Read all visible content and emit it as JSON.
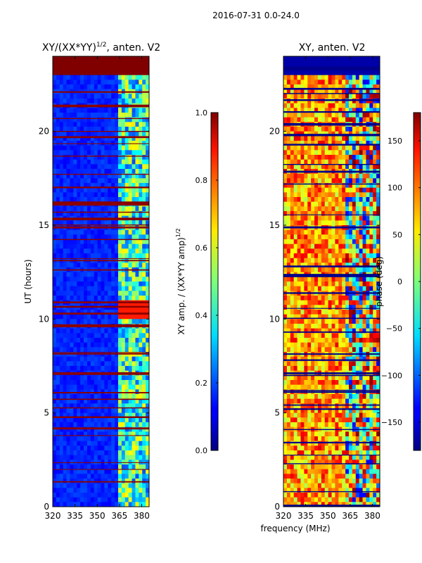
{
  "suptitle": "2016-07-31 0.0-24.0",
  "shared_xlabel": "frequency (MHz)",
  "colors": {
    "low": "#000080",
    "mid_low": "#0040ff",
    "cyan": "#30e0ff",
    "mid": "#7dff7a",
    "yellow": "#ffea00",
    "high": "#ff3000",
    "top": "#800000"
  },
  "chart_data": [
    {
      "type": "heatmap",
      "title_main": "XY/(XX*YY)",
      "title_sup": "1/2",
      "title_rest": ", anten. V2",
      "ylabel": "UT (hours)",
      "xlabel": "",
      "xlim": [
        320,
        385
      ],
      "ylim": [
        0,
        24
      ],
      "xticks": [
        "320",
        "335",
        "350",
        "365",
        "380"
      ],
      "xtick_values": [
        320,
        335,
        350,
        365,
        380
      ],
      "yticks": [
        "0",
        "5",
        "10",
        "15",
        "20"
      ],
      "ytick_values": [
        0,
        5,
        10,
        15,
        20
      ],
      "colorbar": {
        "label_main": "XY amp. / (XX*YY amp)",
        "label_sup": "1/2",
        "range": [
          0.0,
          1.0
        ],
        "ticks": [
          "0.0",
          "0.2",
          "0.4",
          "0.6",
          "0.8",
          "1.0"
        ],
        "tick_values": [
          0.0,
          0.2,
          0.4,
          0.6,
          0.8,
          1.0
        ]
      }
    },
    {
      "type": "heatmap",
      "title_main": "XY, anten. V2",
      "title_sup": "",
      "title_rest": "",
      "ylabel": "",
      "xlabel": "frequency (MHz)",
      "xlim": [
        320,
        385
      ],
      "ylim": [
        0,
        24
      ],
      "xticks": [
        "320",
        "335",
        "350",
        "365",
        "380"
      ],
      "xtick_values": [
        320,
        335,
        350,
        365,
        380
      ],
      "yticks": [
        "0",
        "5",
        "10",
        "15",
        "20"
      ],
      "ytick_values": [
        0,
        5,
        10,
        15,
        20
      ],
      "colorbar": {
        "label_main": "phase (deg)",
        "label_sup": "",
        "range": [
          -180,
          180
        ],
        "ticks": [
          "−150",
          "−100",
          "−50",
          "0",
          "50",
          "100",
          "150"
        ],
        "tick_values": [
          -150,
          -100,
          -50,
          0,
          50,
          100,
          150
        ]
      }
    }
  ]
}
